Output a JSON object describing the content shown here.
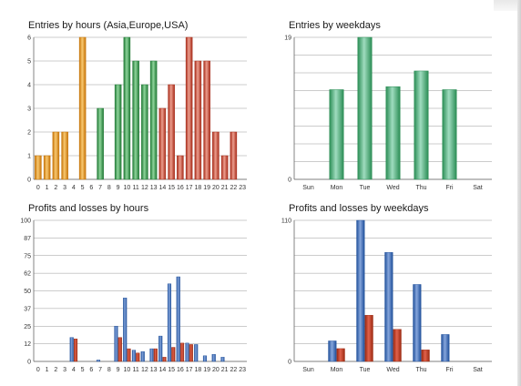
{
  "colors": {
    "orange": [
      "#c67408",
      "#f8c870"
    ],
    "green": [
      "#217a36",
      "#8ed49a"
    ],
    "red": [
      "#a82c1a",
      "#ec9e8e"
    ],
    "weekday_green": [
      "#2b8d55",
      "#9fdcbf"
    ],
    "blue": [
      "#1f4f9a",
      "#86a6dc"
    ],
    "loss": [
      "#9b2810",
      "#e0624c"
    ]
  },
  "chart_data": [
    {
      "id": "hours",
      "type": "bar",
      "title": "Entries by hours (Asia,Europe,USA)",
      "categories": [
        "0",
        "1",
        "2",
        "3",
        "4",
        "5",
        "6",
        "7",
        "8",
        "9",
        "10",
        "11",
        "12",
        "13",
        "14",
        "15",
        "16",
        "17",
        "18",
        "19",
        "20",
        "21",
        "22",
        "23"
      ],
      "values": [
        1,
        1,
        2,
        2,
        0,
        6,
        0,
        3,
        0,
        4,
        6,
        5,
        4,
        5,
        3,
        4,
        1,
        6,
        5,
        5,
        2,
        1,
        2,
        0
      ],
      "ylim": [
        0,
        6
      ],
      "yticks": [
        "6",
        "5",
        "4",
        "3",
        "2",
        "1",
        "0"
      ],
      "xlabel": "",
      "ylabel": "",
      "grid": true
    },
    {
      "id": "weekdays",
      "type": "bar",
      "title": "Entries by weekdays",
      "categories": [
        "Sun",
        "Mon",
        "Tue",
        "Wed",
        "Thu",
        "Fri",
        "Sat"
      ],
      "values": [
        0,
        12,
        19,
        12.4,
        14.5,
        12,
        0
      ],
      "ylim": [
        0,
        19
      ],
      "yticks": [
        "19",
        "0"
      ],
      "xlabel": "",
      "ylabel": "",
      "grid": true
    },
    {
      "id": "pl_hours",
      "type": "bar",
      "title": "Profits and losses by hours",
      "categories": [
        "0",
        "1",
        "2",
        "3",
        "4",
        "5",
        "6",
        "7",
        "8",
        "9",
        "10",
        "11",
        "12",
        "13",
        "14",
        "15",
        "16",
        "17",
        "18",
        "19",
        "20",
        "21",
        "22",
        "23"
      ],
      "series": [
        {
          "values": [
            0,
            0,
            0,
            0,
            17,
            0,
            0,
            1,
            0,
            25,
            45,
            8,
            7,
            9,
            18,
            55,
            60,
            13,
            12,
            4,
            5,
            3,
            0,
            0
          ]
        },
        {
          "values": [
            0,
            0,
            0,
            0,
            16,
            0,
            0,
            0,
            0,
            17,
            9,
            6,
            0,
            9,
            3,
            10,
            13,
            12,
            0,
            0,
            0,
            0,
            0,
            0
          ]
        }
      ],
      "ylim": [
        0,
        100
      ],
      "yticks": [
        "100",
        "87",
        "75",
        "62",
        "50",
        "37",
        "25",
        "12",
        "0"
      ],
      "xlabel": "",
      "ylabel": "",
      "grid": true
    },
    {
      "id": "pl_weekdays",
      "type": "bar",
      "title": "Profits and losses by weekdays",
      "categories": [
        "Sun",
        "Mon",
        "Tue",
        "Wed",
        "Thu",
        "Fri",
        "Sat"
      ],
      "series": [
        {
          "values": [
            0,
            16,
            110,
            85,
            60,
            21,
            0
          ]
        },
        {
          "values": [
            0,
            10,
            36,
            25,
            9,
            0,
            0
          ]
        }
      ],
      "ylim": [
        0,
        110
      ],
      "yticks": [
        "110",
        "0"
      ],
      "xlabel": "",
      "ylabel": "",
      "grid": true
    }
  ]
}
